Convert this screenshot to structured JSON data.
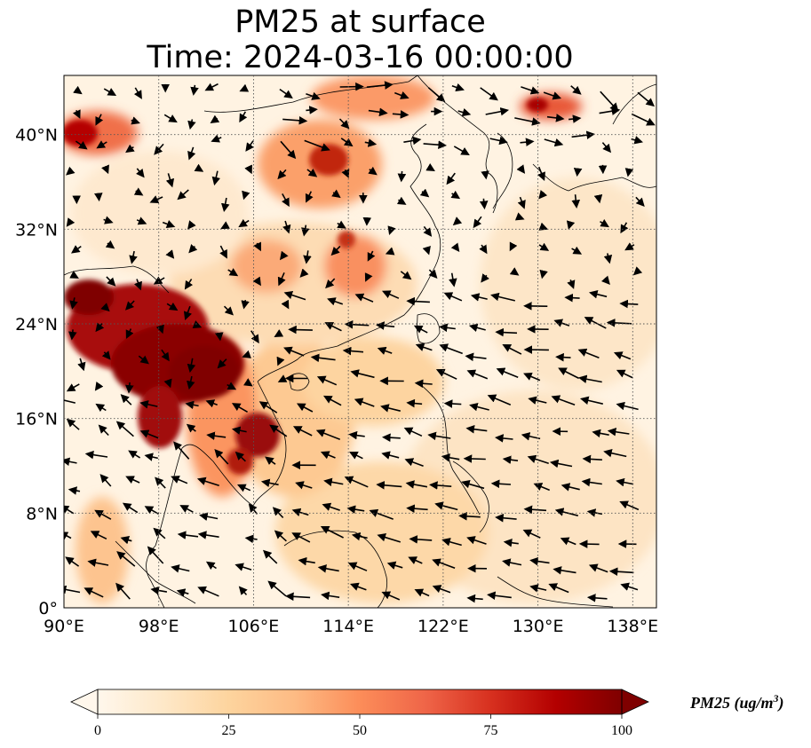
{
  "title": {
    "line1": "PM25 at surface",
    "line2": "Time: 2024-03-16 00:00:00"
  },
  "map": {
    "lon_ticks": [
      "90°E",
      "98°E",
      "106°E",
      "114°E",
      "122°E",
      "130°E",
      "138°E"
    ],
    "lat_ticks": [
      "40°N",
      "32°N",
      "24°N",
      "16°N",
      "8°N",
      "0°"
    ],
    "lon_range": [
      90,
      140
    ],
    "lat_range": [
      0,
      45
    ],
    "gridlines": true
  },
  "colorbar": {
    "title": "PM25 (ug/m",
    "title_sup": "3",
    "title_close": ")",
    "ticks": [
      "0",
      "25",
      "50",
      "75",
      "100"
    ],
    "range": [
      0,
      100
    ],
    "extend": "both",
    "colormap": "OrRd",
    "colors": [
      "#fff7ec",
      "#fee8c8",
      "#fdd49e",
      "#fdbb84",
      "#fc8d59",
      "#ef6548",
      "#d7301f",
      "#b30000",
      "#7f0000"
    ]
  }
}
